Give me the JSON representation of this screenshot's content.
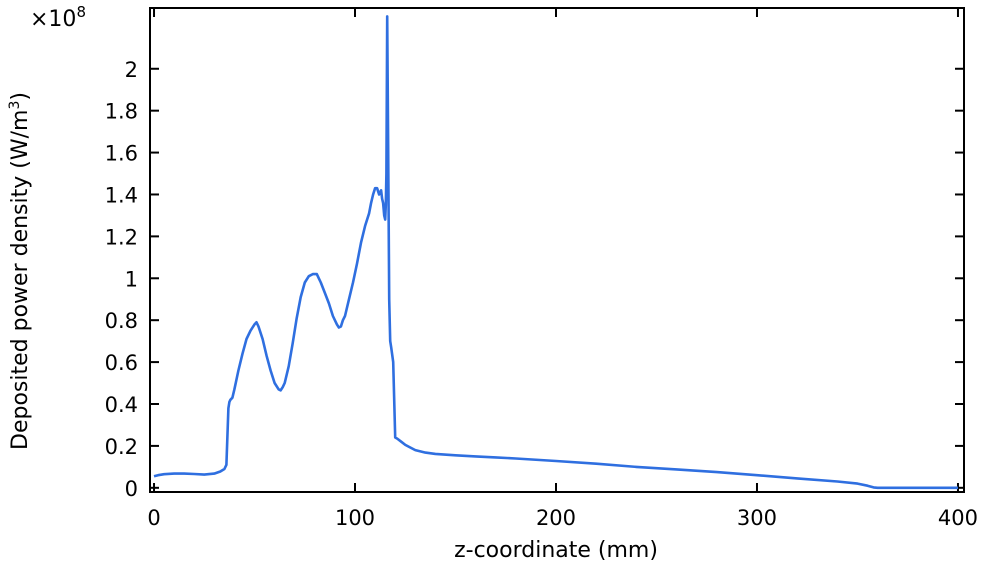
{
  "chart_data": {
    "type": "line",
    "xlabel": "z-coordinate (mm)",
    "ylabel_main": "Deposited power density (W/m",
    "ylabel_sup": "3",
    "ylabel_close": ")",
    "y_multiplier_base": "×10",
    "y_multiplier_exp": "8",
    "xlim": [
      -2,
      403
    ],
    "ylim": [
      -0.02,
      2.29
    ],
    "x_ticks": [
      0,
      100,
      200,
      300,
      400
    ],
    "x_tick_labels": [
      "0",
      "100",
      "200",
      "300",
      "400"
    ],
    "y_ticks": [
      0,
      0.2,
      0.4,
      0.6,
      0.8,
      1.0,
      1.2,
      1.4,
      1.6,
      1.8,
      2.0
    ],
    "y_tick_labels": [
      "0",
      "0.2",
      "0.4",
      "0.6",
      "0.8",
      "1",
      "1.2",
      "1.4",
      "1.6",
      "1.8",
      "2"
    ],
    "grid": false,
    "line_color": "#2f6fe0",
    "series": [
      {
        "x": [
          0,
          2,
          5,
          10,
          15,
          20,
          25,
          30,
          33,
          35,
          36,
          37,
          37.5,
          38,
          39,
          40,
          42,
          44,
          46,
          48,
          50,
          51,
          52,
          54,
          56,
          58,
          60,
          62,
          63,
          64,
          65,
          67,
          69,
          71,
          73,
          75,
          77,
          79,
          80,
          81,
          82,
          83,
          85,
          87,
          89,
          91,
          92,
          93,
          94,
          95,
          97,
          99,
          101,
          103,
          105,
          107,
          108,
          109,
          110,
          111,
          112,
          113,
          113.5,
          114,
          114.5,
          115,
          115.3,
          115.6,
          116,
          116.5,
          117,
          117.5,
          118,
          119,
          120,
          121,
          123,
          125,
          127,
          130,
          135,
          140,
          150,
          160,
          170,
          180,
          200,
          220,
          240,
          260,
          280,
          300,
          320,
          340,
          350,
          355,
          358,
          360,
          370,
          380,
          390,
          400
        ],
        "y": [
          0.055,
          0.06,
          0.065,
          0.068,
          0.068,
          0.066,
          0.063,
          0.068,
          0.078,
          0.09,
          0.11,
          0.38,
          0.41,
          0.42,
          0.43,
          0.47,
          0.56,
          0.64,
          0.71,
          0.75,
          0.78,
          0.79,
          0.77,
          0.71,
          0.63,
          0.56,
          0.5,
          0.47,
          0.465,
          0.48,
          0.5,
          0.58,
          0.69,
          0.81,
          0.91,
          0.98,
          1.01,
          1.02,
          1.02,
          1.02,
          1.0,
          0.98,
          0.93,
          0.88,
          0.82,
          0.78,
          0.765,
          0.77,
          0.8,
          0.82,
          0.9,
          0.98,
          1.07,
          1.17,
          1.25,
          1.31,
          1.36,
          1.4,
          1.43,
          1.43,
          1.4,
          1.42,
          1.38,
          1.36,
          1.3,
          1.28,
          1.35,
          1.5,
          2.25,
          1.6,
          0.9,
          0.7,
          0.67,
          0.6,
          0.24,
          0.235,
          0.22,
          0.205,
          0.195,
          0.18,
          0.168,
          0.162,
          0.155,
          0.15,
          0.145,
          0.14,
          0.128,
          0.115,
          0.1,
          0.088,
          0.075,
          0.06,
          0.045,
          0.03,
          0.02,
          0.01,
          0.002,
          0.0,
          0.0,
          0.0,
          0.0,
          0.0
        ]
      }
    ]
  }
}
